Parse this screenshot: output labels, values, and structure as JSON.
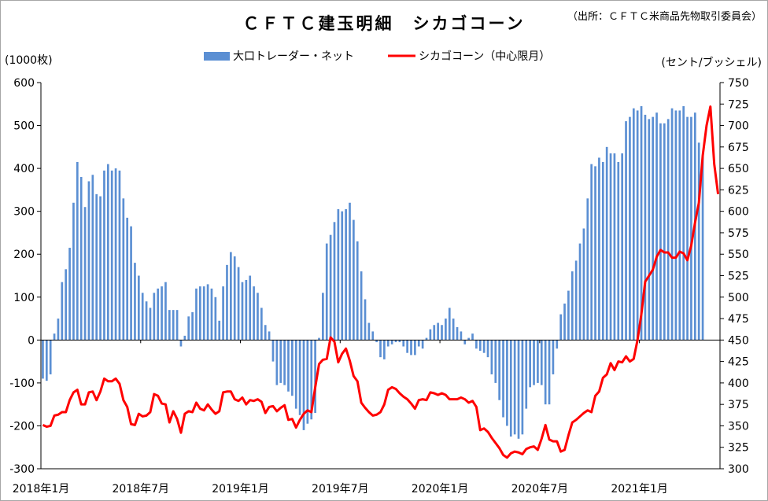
{
  "chart_data": {
    "type": "bar+line",
    "title": "ＣＦＴＣ建玉明細　シカゴコーン",
    "source_note": "（出所：ＣＦＴＣ米商品先物取引委員会）",
    "left_axis_label": "(1000枚)",
    "right_axis_label": "(セント/ブッシェル)",
    "legend_position": "top",
    "left_axis": {
      "min": -300,
      "max": 600,
      "step": 100,
      "ticks": [
        "-300",
        "-200",
        "-100",
        "0",
        "100",
        "200",
        "300",
        "400",
        "500",
        "600"
      ]
    },
    "right_axis": {
      "min": 300,
      "max": 750,
      "step": 25,
      "ticks": [
        "300",
        "325",
        "350",
        "375",
        "400",
        "425",
        "450",
        "475",
        "500",
        "525",
        "550",
        "575",
        "600",
        "625",
        "650",
        "675",
        "700",
        "725",
        "750"
      ]
    },
    "x_labels": [
      "2018年1月",
      "2018年7月",
      "2019年1月",
      "2019年7月",
      "2020年1月",
      "2020年7月",
      "2021年1月"
    ],
    "x_label_week_index": [
      0,
      26,
      52,
      78,
      104,
      130,
      156
    ],
    "grid": false,
    "series": [
      {
        "name": "大口トレーダー・ネット",
        "type": "bar",
        "axis": "left",
        "color": "#5b8fd3",
        "values": [
          -90,
          -95,
          -80,
          15,
          50,
          135,
          165,
          215,
          320,
          415,
          380,
          310,
          370,
          385,
          340,
          335,
          395,
          410,
          395,
          400,
          395,
          330,
          285,
          265,
          180,
          150,
          110,
          90,
          75,
          110,
          120,
          125,
          135,
          70,
          70,
          70,
          -15,
          10,
          55,
          65,
          120,
          125,
          125,
          130,
          120,
          100,
          45,
          125,
          175,
          205,
          195,
          170,
          135,
          140,
          150,
          125,
          110,
          75,
          35,
          20,
          -50,
          -105,
          -100,
          -105,
          -120,
          -130,
          -160,
          -175,
          -210,
          -195,
          -185,
          -170,
          5,
          110,
          225,
          245,
          275,
          305,
          300,
          305,
          320,
          280,
          230,
          160,
          95,
          40,
          20,
          -5,
          -40,
          -45,
          -15,
          -10,
          -5,
          -5,
          -15,
          -30,
          -35,
          -35,
          -15,
          -20,
          5,
          25,
          35,
          40,
          35,
          50,
          75,
          50,
          30,
          20,
          -10,
          5,
          15,
          -20,
          -25,
          -30,
          -40,
          -80,
          -100,
          -140,
          -180,
          -200,
          -225,
          -220,
          -230,
          -220,
          -160,
          -110,
          -105,
          -100,
          -105,
          -150,
          -150,
          -80,
          -20,
          60,
          85,
          115,
          160,
          185,
          225,
          260,
          330,
          410,
          405,
          425,
          415,
          450,
          435,
          435,
          415,
          435,
          510,
          520,
          540,
          535,
          545,
          525,
          515,
          520,
          530,
          505,
          505,
          515,
          540,
          535,
          535,
          545,
          520,
          520,
          530,
          460,
          430
        ]
      },
      {
        "name": "シカゴコーン（中心限月）",
        "type": "line",
        "axis": "right",
        "color": "#ff0000",
        "values": [
          351,
          349,
          350,
          362,
          363,
          366,
          366,
          380,
          389,
          392,
          375,
          375,
          389,
          390,
          380,
          390,
          405,
          402,
          402,
          405,
          399,
          380,
          372,
          352,
          351,
          364,
          361,
          362,
          366,
          387,
          385,
          376,
          375,
          354,
          367,
          358,
          342,
          364,
          367,
          366,
          377,
          370,
          368,
          375,
          369,
          364,
          367,
          389,
          390,
          390,
          381,
          379,
          383,
          375,
          380,
          379,
          381,
          378,
          365,
          372,
          373,
          367,
          371,
          374,
          357,
          358,
          348,
          357,
          364,
          368,
          366,
          395,
          422,
          427,
          428,
          453,
          448,
          424,
          434,
          440,
          426,
          408,
          402,
          377,
          371,
          366,
          362,
          363,
          366,
          375,
          392,
          395,
          393,
          388,
          384,
          381,
          376,
          370,
          380,
          381,
          380,
          389,
          388,
          386,
          388,
          386,
          381,
          381,
          381,
          383,
          381,
          377,
          379,
          372,
          345,
          347,
          343,
          336,
          330,
          324,
          316,
          313,
          318,
          320,
          319,
          317,
          323,
          325,
          326,
          322,
          335,
          351,
          334,
          332,
          332,
          320,
          322,
          339,
          354,
          357,
          361,
          365,
          368,
          366,
          385,
          390,
          406,
          410,
          423,
          415,
          425,
          424,
          431,
          425,
          428,
          450,
          480,
          518,
          525,
          532,
          547,
          555,
          552,
          552,
          546,
          546,
          553,
          551,
          543,
          560,
          587,
          610,
          665,
          700,
          722,
          655,
          620
        ]
      }
    ]
  }
}
